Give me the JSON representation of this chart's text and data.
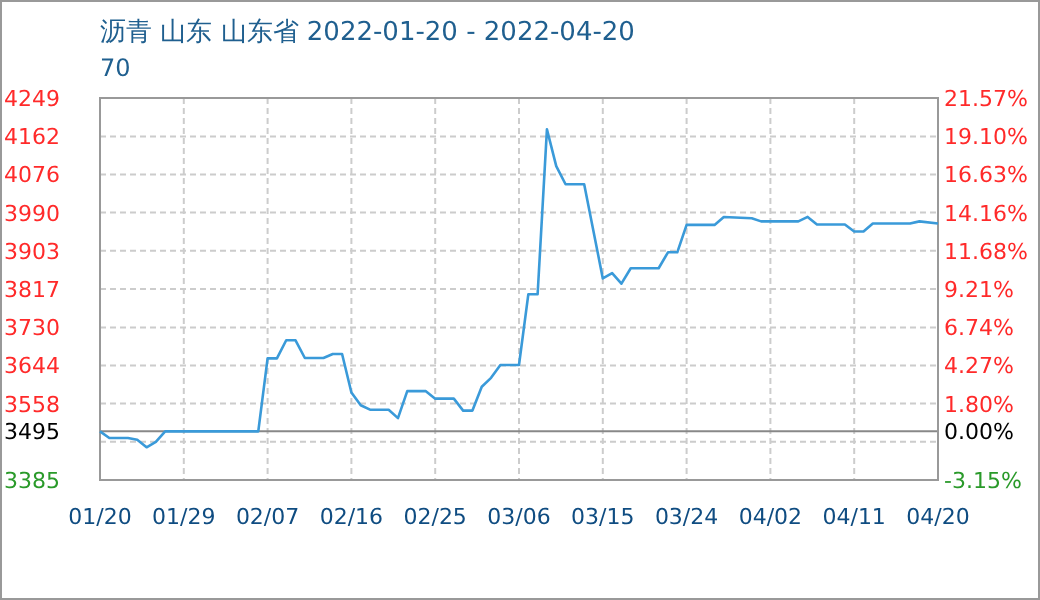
{
  "chart_data": {
    "type": "line",
    "title": "沥青 山东 山东省 2022-01-20 - 2022-04-20",
    "subtitle": "70",
    "x": [
      "2022-01-20",
      "2022-01-21",
      "2022-01-23",
      "2022-01-24",
      "2022-01-25",
      "2022-01-26",
      "2022-01-27",
      "2022-02-06",
      "2022-02-07",
      "2022-02-08",
      "2022-02-09",
      "2022-02-10",
      "2022-02-11",
      "2022-02-13",
      "2022-02-14",
      "2022-02-15",
      "2022-02-16",
      "2022-02-17",
      "2022-02-18",
      "2022-02-20",
      "2022-02-21",
      "2022-02-22",
      "2022-02-24",
      "2022-02-25",
      "2022-02-27",
      "2022-02-28",
      "2022-03-01",
      "2022-03-02",
      "2022-03-03",
      "2022-03-04",
      "2022-03-06",
      "2022-03-07",
      "2022-03-08",
      "2022-03-09",
      "2022-03-10",
      "2022-03-11",
      "2022-03-13",
      "2022-03-15",
      "2022-03-16",
      "2022-03-17",
      "2022-03-18",
      "2022-03-21",
      "2022-03-22",
      "2022-03-23",
      "2022-03-24",
      "2022-03-27",
      "2022-03-28",
      "2022-03-31",
      "2022-04-01",
      "2022-04-05",
      "2022-04-06",
      "2022-04-07",
      "2022-04-10",
      "2022-04-11",
      "2022-04-12",
      "2022-04-13",
      "2022-04-17",
      "2022-04-18",
      "2022-04-20"
    ],
    "series": [
      {
        "color": "#3a9ad9",
        "values": [
          3495,
          3480,
          3480,
          3476,
          3459,
          3471,
          3495,
          3495,
          3660,
          3660,
          3701,
          3701,
          3661,
          3661,
          3670,
          3670,
          3583,
          3554,
          3544,
          3544,
          3525,
          3586,
          3586,
          3569,
          3569,
          3542,
          3542,
          3596,
          3616,
          3645,
          3645,
          3805,
          3805,
          4178,
          4095,
          4054,
          4054,
          3841,
          3853,
          3829,
          3864,
          3864,
          3900,
          3900,
          3962,
          3962,
          3980,
          3977,
          3970,
          3970,
          3980,
          3963,
          3963,
          3947,
          3947,
          3965,
          3965,
          3970,
          3965
        ]
      }
    ],
    "xlim": [
      "2022-01-20",
      "2022-04-20"
    ],
    "xticks": [
      {
        "value": "2022-01-20",
        "label": "01/20"
      },
      {
        "value": "2022-01-29",
        "label": "01/29"
      },
      {
        "value": "2022-02-07",
        "label": "02/07"
      },
      {
        "value": "2022-02-16",
        "label": "02/16"
      },
      {
        "value": "2022-02-25",
        "label": "02/25"
      },
      {
        "value": "2022-03-06",
        "label": "03/06"
      },
      {
        "value": "2022-03-15",
        "label": "03/15"
      },
      {
        "value": "2022-03-24",
        "label": "03/24"
      },
      {
        "value": "2022-04-02",
        "label": "04/02"
      },
      {
        "value": "2022-04-11",
        "label": "04/11"
      },
      {
        "value": "2022-04-20",
        "label": "04/20"
      }
    ],
    "ylim": [
      3385,
      4249
    ],
    "yticks": [
      3385,
      {
        "value": 3471.4,
        "label": null
      },
      {
        "value": 3495,
        "label": "3495"
      },
      {
        "value": 3557.8,
        "label": "3558"
      },
      {
        "value": 3644.2,
        "label": "3644"
      },
      3730,
      3817,
      {
        "value": 3903.4,
        "label": "3903"
      },
      {
        "value": 3989.8,
        "label": "3990"
      },
      {
        "value": 4076.2,
        "label": "4076"
      },
      4162,
      4249
    ],
    "y2lim": [
      -3.15,
      21.57
    ],
    "y2ticks": [
      {
        "value": -3.15,
        "label": "-3.15%"
      },
      {
        "value": 0,
        "label": "0.00%"
      },
      {
        "value": 1.8,
        "label": "1.80%"
      },
      {
        "value": 4.27,
        "label": "4.27%"
      },
      {
        "value": 6.74,
        "label": "6.74%"
      },
      {
        "value": 9.21,
        "label": "9.21%"
      },
      {
        "value": 11.68,
        "label": "11.68%"
      },
      {
        "value": 14.16,
        "label": "14.16%"
      },
      {
        "value": 16.63,
        "label": "16.63%"
      },
      {
        "value": 19.1,
        "label": "19.10%"
      },
      {
        "value": 21.57,
        "label": "21.57%"
      }
    ],
    "ref_lines": [
      {
        "axis": "y",
        "value": 3495,
        "color": "#888888"
      }
    ],
    "grid": true,
    "line_style": "solid"
  }
}
